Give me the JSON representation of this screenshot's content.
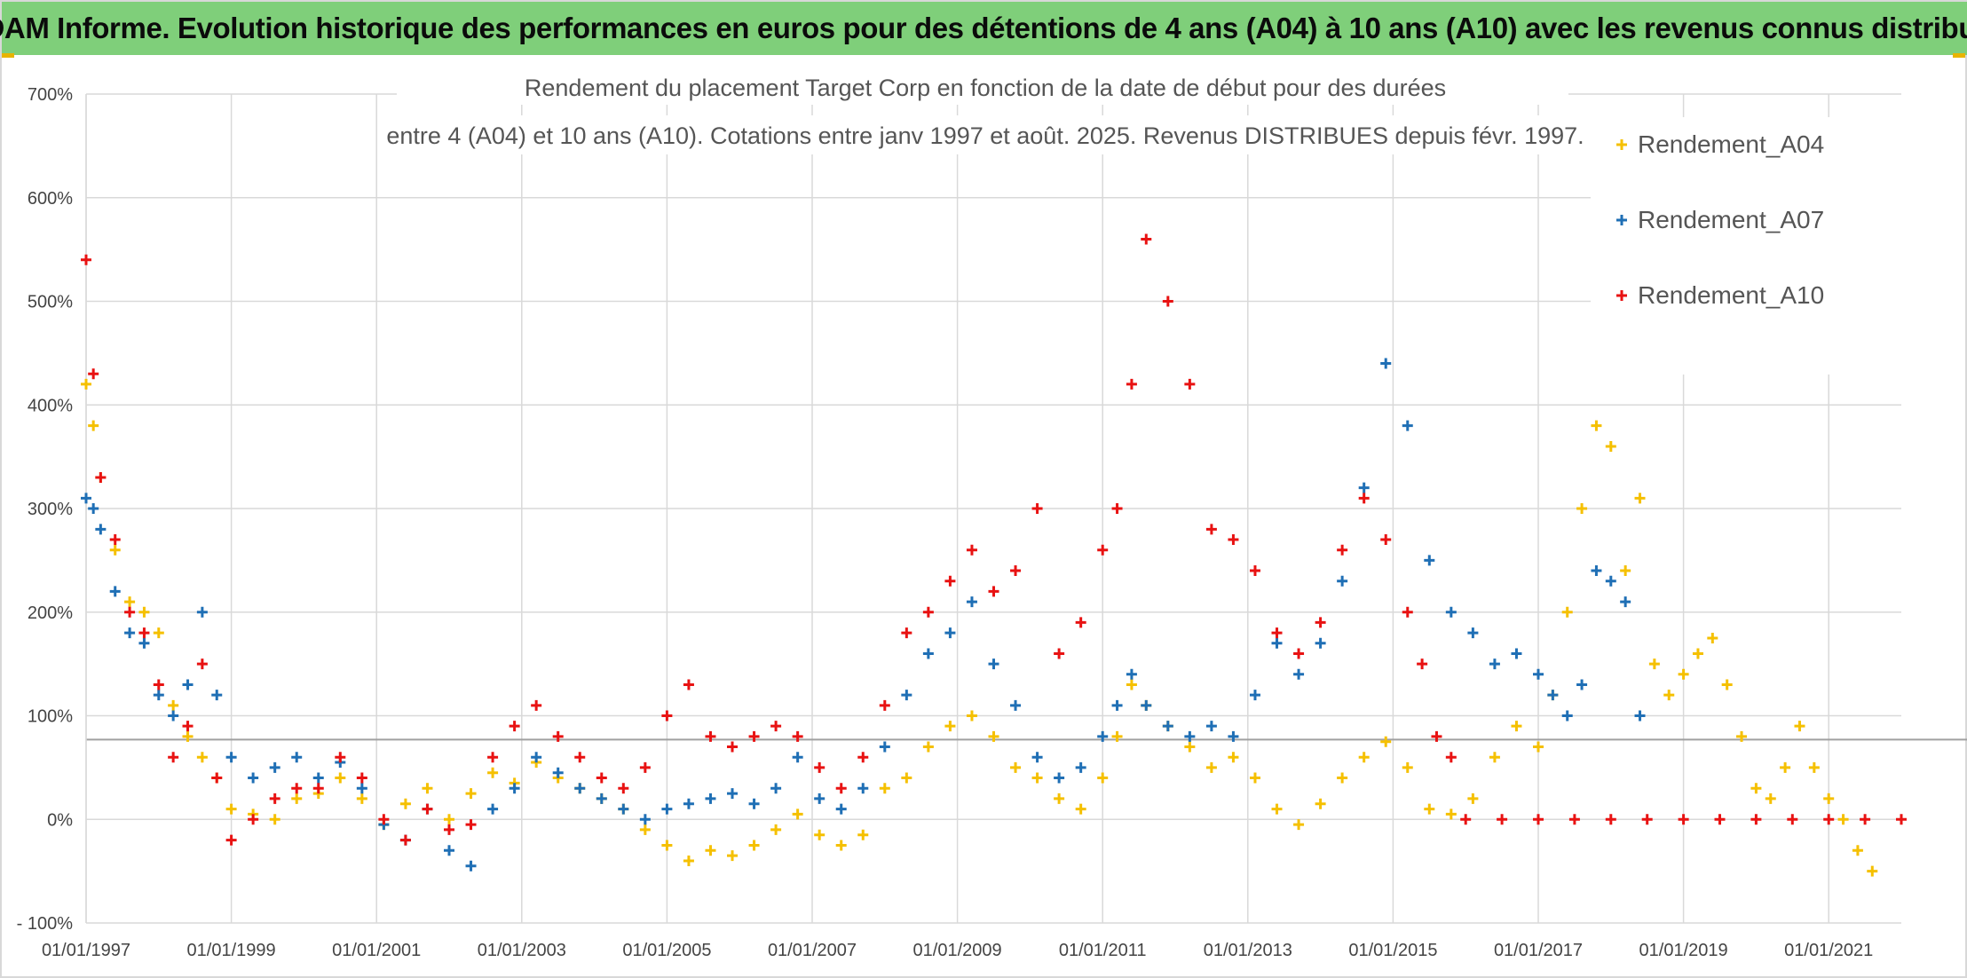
{
  "banner": {
    "text": "ADAM Informe. Evolution historique des performances en euros pour des détentions de 4 ans (A04) à 10 ans (A10) avec les revenus connus distribués"
  },
  "chart_data": {
    "type": "scatter",
    "title_line1": "Rendement du placement Target Corp en fonction de la date de début pour des durées",
    "title_line2": "entre 4 (A04) et 10 ans (A10). Cotations entre janv 1997 et août. 2025. Revenus DISTRIBUES depuis févr. 1997.",
    "xlabel": "",
    "ylabel": "",
    "xlim": [
      1997.0,
      2022.0
    ],
    "ylim": [
      -100,
      700
    ],
    "y_ticks": [
      {
        "value": 700,
        "label": "700%"
      },
      {
        "value": 600,
        "label": "600%"
      },
      {
        "value": 500,
        "label": "500%"
      },
      {
        "value": 400,
        "label": "400%"
      },
      {
        "value": 300,
        "label": "300%"
      },
      {
        "value": 200,
        "label": "200%"
      },
      {
        "value": 100,
        "label": "100%"
      },
      {
        "value": 0,
        "label": "0%"
      },
      {
        "value": -100,
        "label": "- 100%"
      }
    ],
    "x_ticks": [
      {
        "value": 1997,
        "label": "01/01/1997"
      },
      {
        "value": 1999,
        "label": "01/01/1999"
      },
      {
        "value": 2001,
        "label": "01/01/2001"
      },
      {
        "value": 2003,
        "label": "01/01/2003"
      },
      {
        "value": 2005,
        "label": "01/01/2005"
      },
      {
        "value": 2007,
        "label": "01/01/2007"
      },
      {
        "value": 2009,
        "label": "01/01/2009"
      },
      {
        "value": 2011,
        "label": "01/01/2011"
      },
      {
        "value": 2013,
        "label": "01/01/2013"
      },
      {
        "value": 2015,
        "label": "01/01/2015"
      },
      {
        "value": 2017,
        "label": "01/01/2017"
      },
      {
        "value": 2019,
        "label": "01/01/2019"
      },
      {
        "value": 2021,
        "label": "01/01/2021"
      }
    ],
    "reference_line": 77,
    "grid": true,
    "legend_position": "top-right",
    "series": [
      {
        "name": "Rendement_A04",
        "color": "#f5c000",
        "marker": "plus",
        "x": [
          1997.0,
          1997.1,
          1997.2,
          1997.4,
          1997.6,
          1997.8,
          1998.0,
          1998.2,
          1998.4,
          1998.6,
          1998.8,
          1999.0,
          1999.3,
          1999.6,
          1999.9,
          2000.2,
          2000.5,
          2000.8,
          2001.1,
          2001.4,
          2001.7,
          2002.0,
          2002.3,
          2002.6,
          2002.9,
          2003.2,
          2003.5,
          2003.8,
          2004.1,
          2004.4,
          2004.7,
          2005.0,
          2005.3,
          2005.6,
          2005.9,
          2006.2,
          2006.5,
          2006.8,
          2007.1,
          2007.4,
          2007.7,
          2008.0,
          2008.3,
          2008.6,
          2008.9,
          2009.2,
          2009.5,
          2009.8,
          2010.1,
          2010.4,
          2010.7,
          2011.0,
          2011.2,
          2011.4,
          2011.6,
          2011.9,
          2012.2,
          2012.5,
          2012.8,
          2013.1,
          2013.4,
          2013.7,
          2014.0,
          2014.3,
          2014.6,
          2014.9,
          2015.2,
          2015.5,
          2015.8,
          2016.1,
          2016.4,
          2016.7,
          2017.0,
          2017.2,
          2017.4,
          2017.6,
          2017.8,
          2018.0,
          2018.2,
          2018.4,
          2018.6,
          2018.8,
          2019.0,
          2019.2,
          2019.4,
          2019.6,
          2019.8,
          2020.0,
          2020.2,
          2020.4,
          2020.6,
          2020.8,
          2021.0,
          2021.2,
          2021.4,
          2021.6
        ],
        "y": [
          420,
          380,
          330,
          260,
          210,
          200,
          180,
          110,
          80,
          60,
          40,
          10,
          5,
          0,
          20,
          25,
          40,
          20,
          -5,
          15,
          30,
          0,
          25,
          45,
          35,
          55,
          40,
          30,
          20,
          10,
          -10,
          -25,
          -40,
          -30,
          -35,
          -25,
          -10,
          5,
          -15,
          -25,
          -15,
          30,
          40,
          70,
          90,
          100,
          80,
          50,
          40,
          20,
          10,
          40,
          80,
          130,
          110,
          90,
          70,
          50,
          60,
          40,
          10,
          -5,
          15,
          40,
          60,
          75,
          50,
          10,
          5,
          20,
          60,
          90,
          70,
          120,
          200,
          300,
          380,
          360,
          240,
          310,
          150,
          120,
          140,
          160,
          175,
          130,
          80,
          30,
          20,
          50,
          90,
          50,
          20,
          0,
          -30,
          -50
        ]
      },
      {
        "name": "Rendement_A07",
        "color": "#1f6fb5",
        "marker": "plus",
        "x": [
          1997.0,
          1997.1,
          1997.2,
          1997.4,
          1997.6,
          1997.8,
          1998.0,
          1998.2,
          1998.4,
          1998.6,
          1998.8,
          1999.0,
          1999.3,
          1999.6,
          1999.9,
          2000.2,
          2000.5,
          2000.8,
          2001.1,
          2001.4,
          2001.7,
          2002.0,
          2002.3,
          2002.6,
          2002.9,
          2003.2,
          2003.5,
          2003.8,
          2004.1,
          2004.4,
          2004.7,
          2005.0,
          2005.3,
          2005.6,
          2005.9,
          2006.2,
          2006.5,
          2006.8,
          2007.1,
          2007.4,
          2007.7,
          2008.0,
          2008.3,
          2008.6,
          2008.9,
          2009.2,
          2009.5,
          2009.8,
          2010.1,
          2010.4,
          2010.7,
          2011.0,
          2011.2,
          2011.4,
          2011.6,
          2011.9,
          2012.2,
          2012.5,
          2012.8,
          2013.1,
          2013.4,
          2013.7,
          2014.0,
          2014.3,
          2014.6,
          2014.9,
          2015.2,
          2015.5,
          2015.8,
          2016.1,
          2016.4,
          2016.7,
          2017.0,
          2017.2,
          2017.4,
          2017.6,
          2017.8,
          2018.0,
          2018.2,
          2018.4
        ],
        "y": [
          310,
          300,
          280,
          220,
          180,
          170,
          120,
          100,
          130,
          200,
          120,
          60,
          40,
          50,
          60,
          40,
          55,
          30,
          -5,
          -20,
          10,
          -30,
          -45,
          10,
          30,
          60,
          45,
          30,
          20,
          10,
          0,
          10,
          15,
          20,
          25,
          15,
          30,
          60,
          20,
          10,
          30,
          70,
          120,
          160,
          180,
          210,
          150,
          110,
          60,
          40,
          50,
          80,
          110,
          140,
          110,
          90,
          80,
          90,
          80,
          120,
          170,
          140,
          170,
          230,
          320,
          440,
          380,
          250,
          200,
          180,
          150,
          160,
          140,
          120,
          100,
          130,
          240,
          230,
          210,
          100
        ]
      },
      {
        "name": "Rendement_A10",
        "color": "#e81212",
        "marker": "plus",
        "x": [
          1997.0,
          1997.1,
          1997.2,
          1997.4,
          1997.6,
          1997.8,
          1998.0,
          1998.2,
          1998.4,
          1998.6,
          1998.8,
          1999.0,
          1999.3,
          1999.6,
          1999.9,
          2000.2,
          2000.5,
          2000.8,
          2001.1,
          2001.4,
          2001.7,
          2002.0,
          2002.3,
          2002.6,
          2002.9,
          2003.2,
          2003.5,
          2003.8,
          2004.1,
          2004.4,
          2004.7,
          2005.0,
          2005.3,
          2005.6,
          2005.9,
          2006.2,
          2006.5,
          2006.8,
          2007.1,
          2007.4,
          2007.7,
          2008.0,
          2008.3,
          2008.6,
          2008.9,
          2009.2,
          2009.5,
          2009.8,
          2010.1,
          2010.4,
          2010.7,
          2011.0,
          2011.2,
          2011.4,
          2011.6,
          2011.9,
          2012.2,
          2012.5,
          2012.8,
          2013.1,
          2013.4,
          2013.7,
          2014.0,
          2014.3,
          2014.6,
          2014.9,
          2015.2,
          2015.4,
          2015.6,
          2015.8,
          2016.0,
          2016.5,
          2017.0,
          2017.5,
          2018.0,
          2018.5,
          2019.0,
          2019.5,
          2020.0,
          2020.5,
          2021.0,
          2021.5,
          2022.0
        ],
        "y": [
          540,
          430,
          330,
          270,
          200,
          180,
          130,
          60,
          90,
          150,
          40,
          -20,
          0,
          20,
          30,
          30,
          60,
          40,
          0,
          -20,
          10,
          -10,
          -5,
          60,
          90,
          110,
          80,
          60,
          40,
          30,
          50,
          100,
          130,
          80,
          70,
          80,
          90,
          80,
          50,
          30,
          60,
          110,
          180,
          200,
          230,
          260,
          220,
          240,
          300,
          160,
          190,
          260,
          300,
          420,
          560,
          500,
          420,
          280,
          270,
          240,
          180,
          160,
          190,
          260,
          310,
          270,
          200,
          150,
          80,
          60,
          0,
          0,
          0,
          0,
          0,
          0,
          0,
          0,
          0,
          0,
          0,
          0,
          0
        ]
      }
    ]
  }
}
